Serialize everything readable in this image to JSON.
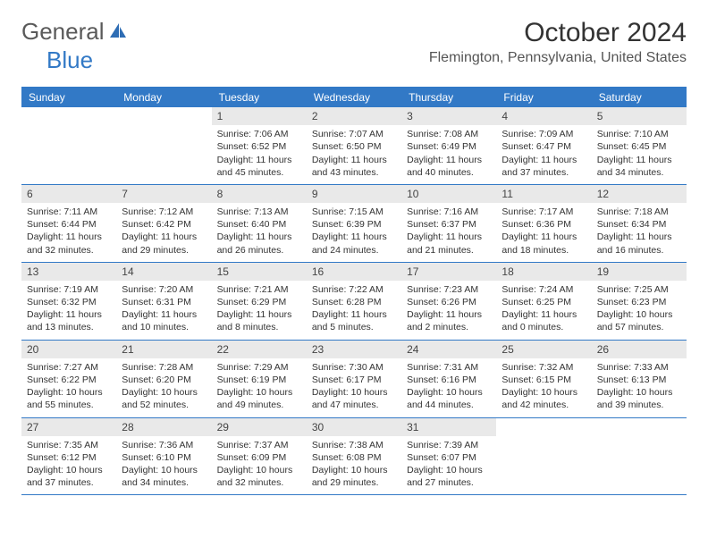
{
  "logo": {
    "text1": "General",
    "text2": "Blue"
  },
  "title": "October 2024",
  "location": "Flemington, Pennsylvania, United States",
  "colors": {
    "accent": "#3279c6",
    "header_bg": "#e9e9e9",
    "text": "#333333",
    "logo_gray": "#5a5a5a"
  },
  "day_headers": [
    "Sunday",
    "Monday",
    "Tuesday",
    "Wednesday",
    "Thursday",
    "Friday",
    "Saturday"
  ],
  "weeks": [
    [
      {
        "day": "",
        "sunrise": "",
        "sunset": "",
        "daylight": ""
      },
      {
        "day": "",
        "sunrise": "",
        "sunset": "",
        "daylight": ""
      },
      {
        "day": "1",
        "sunrise": "Sunrise: 7:06 AM",
        "sunset": "Sunset: 6:52 PM",
        "daylight": "Daylight: 11 hours and 45 minutes."
      },
      {
        "day": "2",
        "sunrise": "Sunrise: 7:07 AM",
        "sunset": "Sunset: 6:50 PM",
        "daylight": "Daylight: 11 hours and 43 minutes."
      },
      {
        "day": "3",
        "sunrise": "Sunrise: 7:08 AM",
        "sunset": "Sunset: 6:49 PM",
        "daylight": "Daylight: 11 hours and 40 minutes."
      },
      {
        "day": "4",
        "sunrise": "Sunrise: 7:09 AM",
        "sunset": "Sunset: 6:47 PM",
        "daylight": "Daylight: 11 hours and 37 minutes."
      },
      {
        "day": "5",
        "sunrise": "Sunrise: 7:10 AM",
        "sunset": "Sunset: 6:45 PM",
        "daylight": "Daylight: 11 hours and 34 minutes."
      }
    ],
    [
      {
        "day": "6",
        "sunrise": "Sunrise: 7:11 AM",
        "sunset": "Sunset: 6:44 PM",
        "daylight": "Daylight: 11 hours and 32 minutes."
      },
      {
        "day": "7",
        "sunrise": "Sunrise: 7:12 AM",
        "sunset": "Sunset: 6:42 PM",
        "daylight": "Daylight: 11 hours and 29 minutes."
      },
      {
        "day": "8",
        "sunrise": "Sunrise: 7:13 AM",
        "sunset": "Sunset: 6:40 PM",
        "daylight": "Daylight: 11 hours and 26 minutes."
      },
      {
        "day": "9",
        "sunrise": "Sunrise: 7:15 AM",
        "sunset": "Sunset: 6:39 PM",
        "daylight": "Daylight: 11 hours and 24 minutes."
      },
      {
        "day": "10",
        "sunrise": "Sunrise: 7:16 AM",
        "sunset": "Sunset: 6:37 PM",
        "daylight": "Daylight: 11 hours and 21 minutes."
      },
      {
        "day": "11",
        "sunrise": "Sunrise: 7:17 AM",
        "sunset": "Sunset: 6:36 PM",
        "daylight": "Daylight: 11 hours and 18 minutes."
      },
      {
        "day": "12",
        "sunrise": "Sunrise: 7:18 AM",
        "sunset": "Sunset: 6:34 PM",
        "daylight": "Daylight: 11 hours and 16 minutes."
      }
    ],
    [
      {
        "day": "13",
        "sunrise": "Sunrise: 7:19 AM",
        "sunset": "Sunset: 6:32 PM",
        "daylight": "Daylight: 11 hours and 13 minutes."
      },
      {
        "day": "14",
        "sunrise": "Sunrise: 7:20 AM",
        "sunset": "Sunset: 6:31 PM",
        "daylight": "Daylight: 11 hours and 10 minutes."
      },
      {
        "day": "15",
        "sunrise": "Sunrise: 7:21 AM",
        "sunset": "Sunset: 6:29 PM",
        "daylight": "Daylight: 11 hours and 8 minutes."
      },
      {
        "day": "16",
        "sunrise": "Sunrise: 7:22 AM",
        "sunset": "Sunset: 6:28 PM",
        "daylight": "Daylight: 11 hours and 5 minutes."
      },
      {
        "day": "17",
        "sunrise": "Sunrise: 7:23 AM",
        "sunset": "Sunset: 6:26 PM",
        "daylight": "Daylight: 11 hours and 2 minutes."
      },
      {
        "day": "18",
        "sunrise": "Sunrise: 7:24 AM",
        "sunset": "Sunset: 6:25 PM",
        "daylight": "Daylight: 11 hours and 0 minutes."
      },
      {
        "day": "19",
        "sunrise": "Sunrise: 7:25 AM",
        "sunset": "Sunset: 6:23 PM",
        "daylight": "Daylight: 10 hours and 57 minutes."
      }
    ],
    [
      {
        "day": "20",
        "sunrise": "Sunrise: 7:27 AM",
        "sunset": "Sunset: 6:22 PM",
        "daylight": "Daylight: 10 hours and 55 minutes."
      },
      {
        "day": "21",
        "sunrise": "Sunrise: 7:28 AM",
        "sunset": "Sunset: 6:20 PM",
        "daylight": "Daylight: 10 hours and 52 minutes."
      },
      {
        "day": "22",
        "sunrise": "Sunrise: 7:29 AM",
        "sunset": "Sunset: 6:19 PM",
        "daylight": "Daylight: 10 hours and 49 minutes."
      },
      {
        "day": "23",
        "sunrise": "Sunrise: 7:30 AM",
        "sunset": "Sunset: 6:17 PM",
        "daylight": "Daylight: 10 hours and 47 minutes."
      },
      {
        "day": "24",
        "sunrise": "Sunrise: 7:31 AM",
        "sunset": "Sunset: 6:16 PM",
        "daylight": "Daylight: 10 hours and 44 minutes."
      },
      {
        "day": "25",
        "sunrise": "Sunrise: 7:32 AM",
        "sunset": "Sunset: 6:15 PM",
        "daylight": "Daylight: 10 hours and 42 minutes."
      },
      {
        "day": "26",
        "sunrise": "Sunrise: 7:33 AM",
        "sunset": "Sunset: 6:13 PM",
        "daylight": "Daylight: 10 hours and 39 minutes."
      }
    ],
    [
      {
        "day": "27",
        "sunrise": "Sunrise: 7:35 AM",
        "sunset": "Sunset: 6:12 PM",
        "daylight": "Daylight: 10 hours and 37 minutes."
      },
      {
        "day": "28",
        "sunrise": "Sunrise: 7:36 AM",
        "sunset": "Sunset: 6:10 PM",
        "daylight": "Daylight: 10 hours and 34 minutes."
      },
      {
        "day": "29",
        "sunrise": "Sunrise: 7:37 AM",
        "sunset": "Sunset: 6:09 PM",
        "daylight": "Daylight: 10 hours and 32 minutes."
      },
      {
        "day": "30",
        "sunrise": "Sunrise: 7:38 AM",
        "sunset": "Sunset: 6:08 PM",
        "daylight": "Daylight: 10 hours and 29 minutes."
      },
      {
        "day": "31",
        "sunrise": "Sunrise: 7:39 AM",
        "sunset": "Sunset: 6:07 PM",
        "daylight": "Daylight: 10 hours and 27 minutes."
      },
      {
        "day": "",
        "sunrise": "",
        "sunset": "",
        "daylight": ""
      },
      {
        "day": "",
        "sunrise": "",
        "sunset": "",
        "daylight": ""
      }
    ]
  ]
}
